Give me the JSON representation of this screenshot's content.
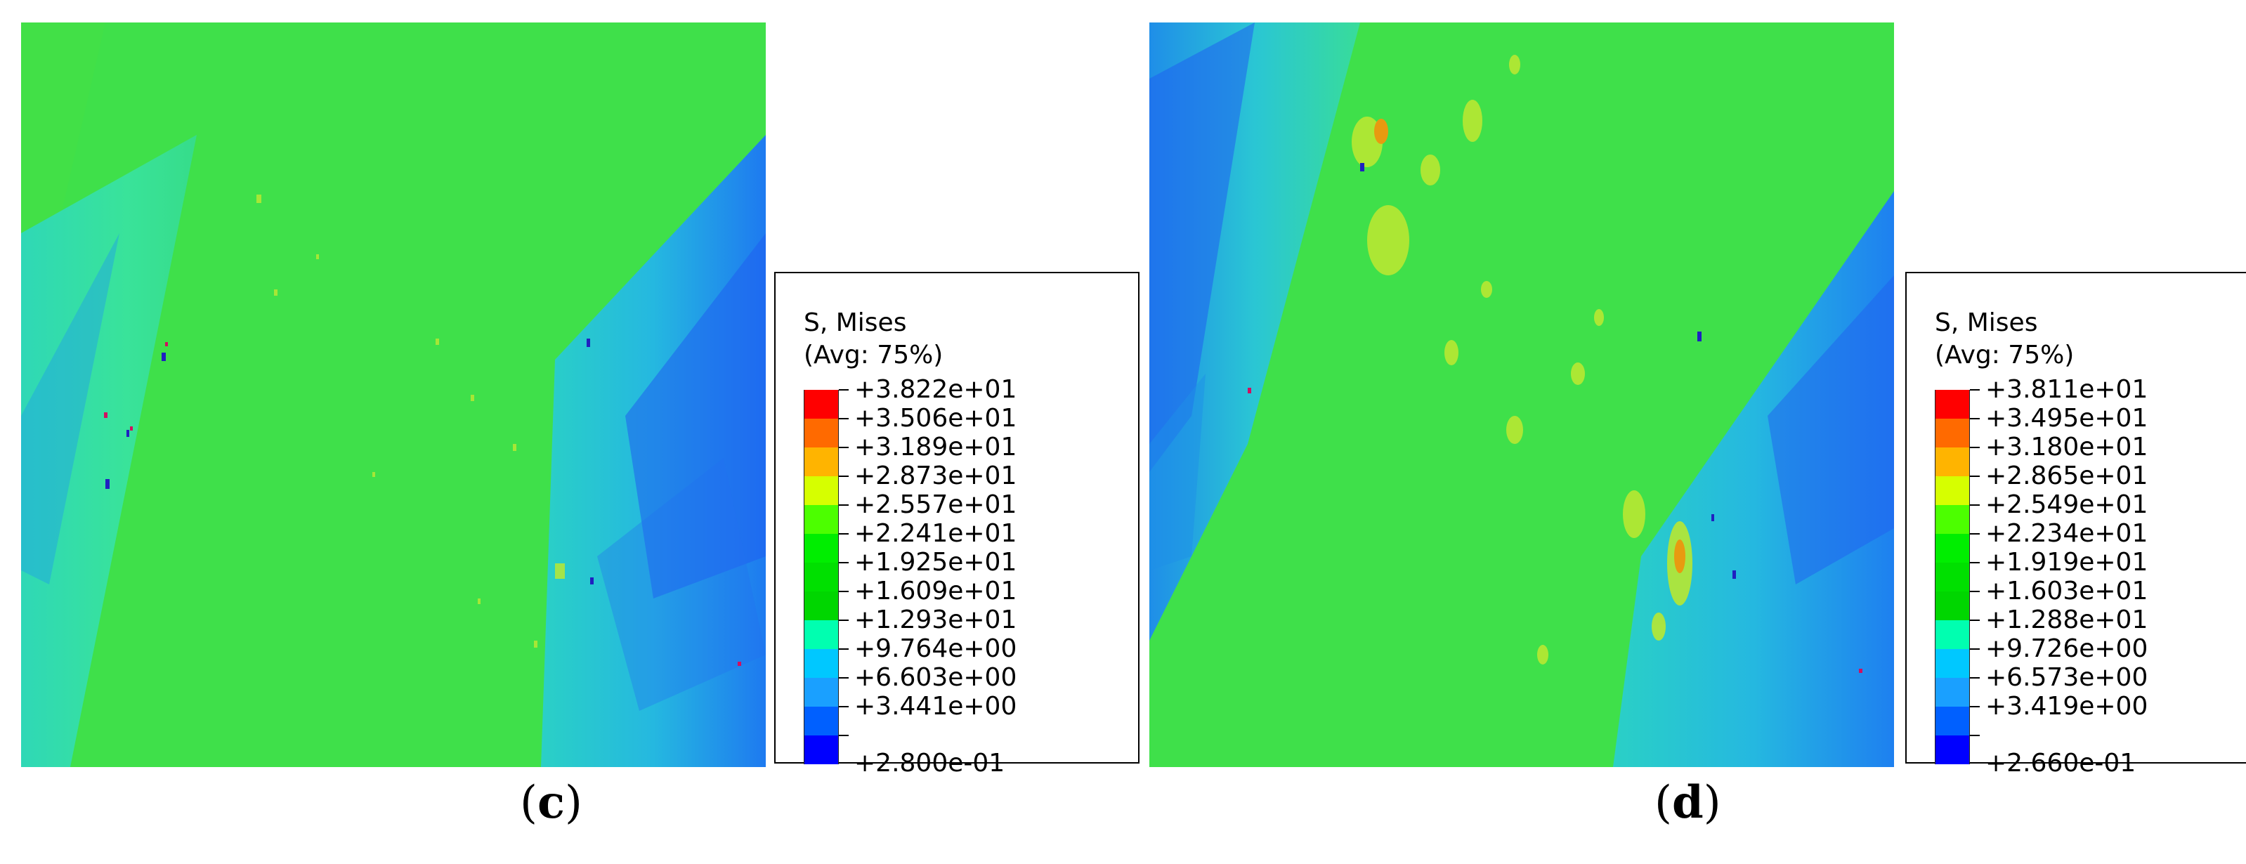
{
  "panels": [
    {
      "id": "c",
      "caption_open": "(",
      "caption_letter": "c",
      "caption_close": ")",
      "legend": {
        "title_line1": "S, Mises",
        "title_line2": "(Avg: 75%)",
        "levels": [
          "+3.822e+01",
          "+3.506e+01",
          "+3.189e+01",
          "+2.873e+01",
          "+2.557e+01",
          "+2.241e+01",
          "+1.925e+01",
          "+1.609e+01",
          "+1.293e+01",
          "+9.764e+00",
          "+6.603e+00",
          "+3.441e+00",
          "+2.800e-01"
        ],
        "colors": [
          "#ff0000",
          "#ff6a00",
          "#ffb400",
          "#d6ff00",
          "#4cff00",
          "#00ee00",
          "#00e000",
          "#00d600",
          "#00ffb0",
          "#00c8ff",
          "#1aa0ff",
          "#0060ff",
          "#0000ff"
        ]
      }
    },
    {
      "id": "d",
      "caption_open": "(",
      "caption_letter": "d",
      "caption_close": ")",
      "legend": {
        "title_line1": "S, Mises",
        "title_line2": "(Avg: 75%)",
        "levels": [
          "+3.811e+01",
          "+3.495e+01",
          "+3.180e+01",
          "+2.865e+01",
          "+2.549e+01",
          "+2.234e+01",
          "+1.919e+01",
          "+1.603e+01",
          "+1.288e+01",
          "+9.726e+00",
          "+6.573e+00",
          "+3.419e+00",
          "+2.660e-01"
        ],
        "colors": [
          "#ff0000",
          "#ff6a00",
          "#ffb400",
          "#d6ff00",
          "#4cff00",
          "#00ee00",
          "#00e000",
          "#00d600",
          "#00ffb0",
          "#00c8ff",
          "#1aa0ff",
          "#0060ff",
          "#0000ff"
        ]
      }
    }
  ]
}
